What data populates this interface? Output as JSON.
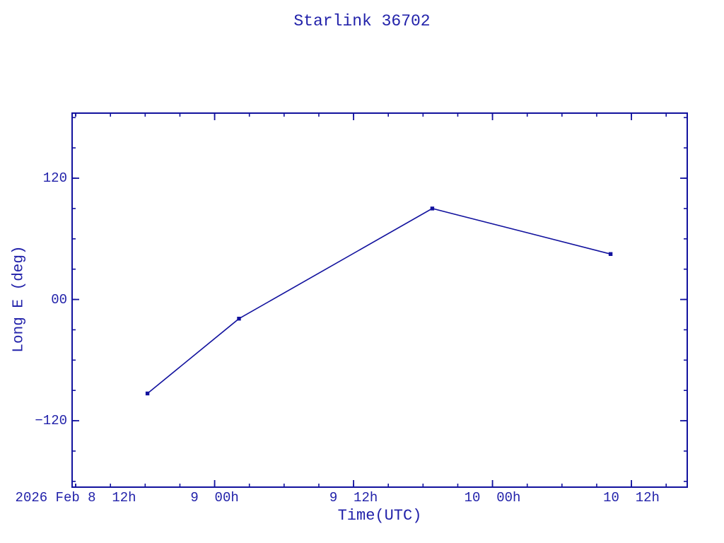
{
  "colors": {
    "background": "#ffffff",
    "ink_text": "#2222aa",
    "ink_line": "#12129e",
    "marker": "#12129e"
  },
  "chart_data": {
    "type": "line",
    "title": "Starlink 36702",
    "xlabel": "Time(UTC)",
    "ylabel": "Long E (deg)",
    "grid": false,
    "legend": null,
    "x_axis": {
      "units": "hours after first labeled tick (2026 Feb 8 12h UTC)",
      "lim": [
        -0.31,
        52.82
      ],
      "minor_step": 3,
      "major_ticks": [
        {
          "t": 0,
          "label": "2026 Feb 8  12h",
          "short_tick": true
        },
        {
          "t": 12,
          "label": "9  00h"
        },
        {
          "t": 24,
          "label": "9  12h"
        },
        {
          "t": 36,
          "label": "10  00h"
        },
        {
          "t": 48,
          "label": "10  12h"
        }
      ]
    },
    "y_axis": {
      "units": "deg",
      "lim": [
        -185.7,
        184.4
      ],
      "minor_step": 30,
      "major_ticks": [
        {
          "v": 120,
          "label": "120"
        },
        {
          "v": 0,
          "label": "00"
        },
        {
          "v": -120,
          "label": "−120"
        }
      ]
    },
    "series": [
      {
        "name": "Long E",
        "marker": "filled-square",
        "points": [
          {
            "t": 6.2,
            "time_utc": "2026 Feb 8 ~18:12",
            "long_e_deg": -93
          },
          {
            "t": 14.1,
            "time_utc": "2026 Feb 9 ~02:08",
            "long_e_deg": -19
          },
          {
            "t": 30.8,
            "time_utc": "2026 Feb 9 ~18:47",
            "long_e_deg": 90
          },
          {
            "t": 46.2,
            "time_utc": "2026 Feb 10 ~10:12",
            "long_e_deg": 45
          }
        ]
      }
    ]
  }
}
